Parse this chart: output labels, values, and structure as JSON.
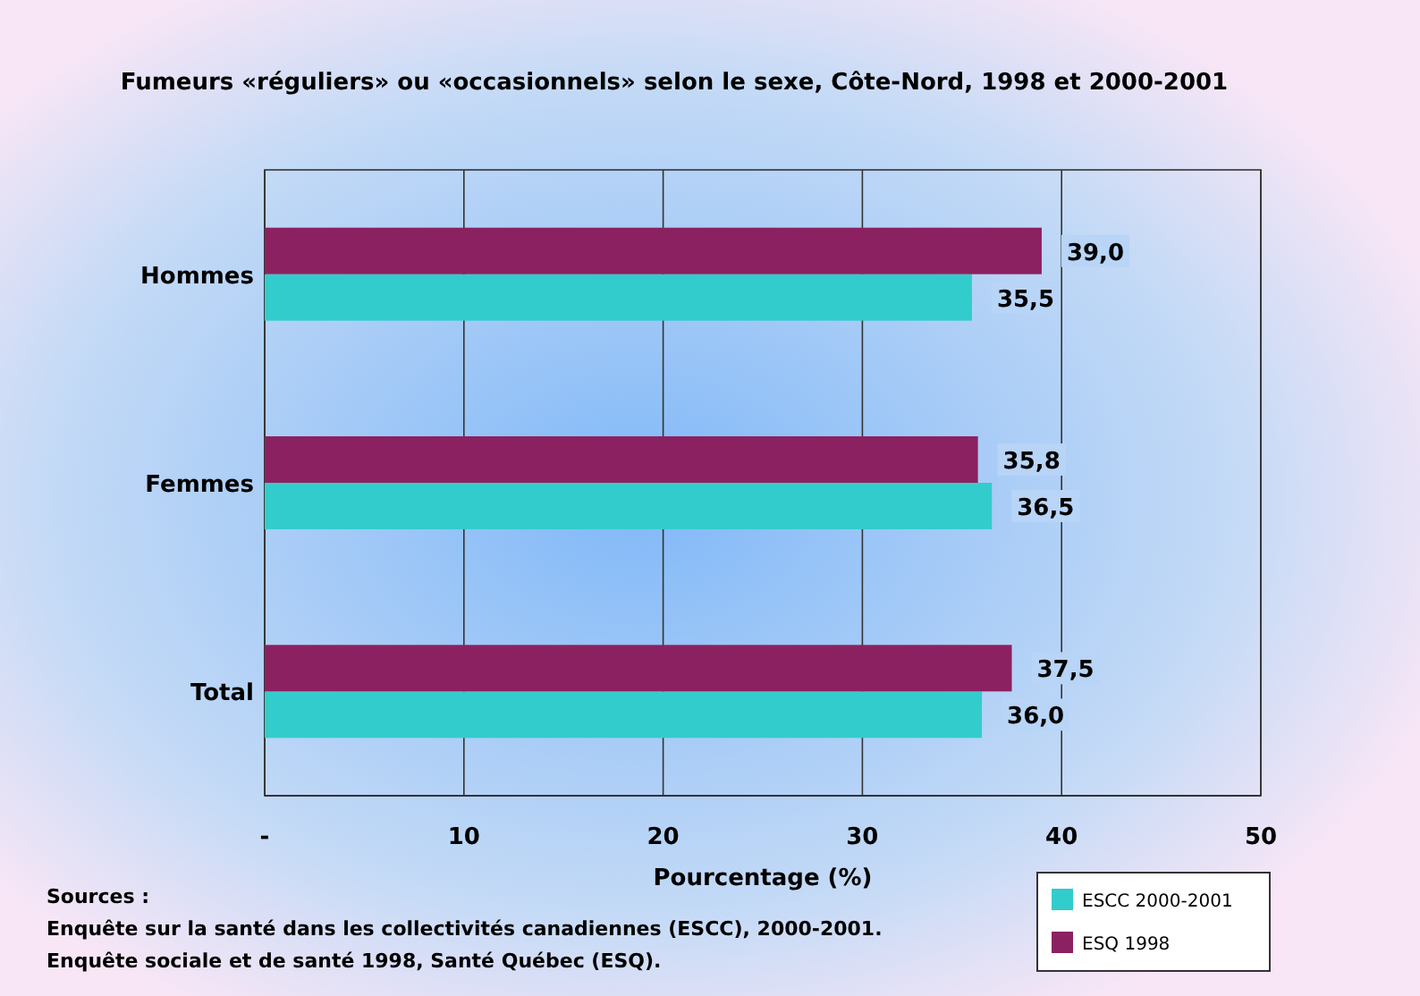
{
  "chart_data": {
    "type": "bar",
    "orientation": "horizontal",
    "title": "Fumeurs «réguliers» ou «occasionnels» selon le sexe, Côte-Nord, 1998 et 2000-2001",
    "xlabel": "Pourcentage (%)",
    "categories": [
      "Hommes",
      "Femmes",
      "Total"
    ],
    "series": [
      {
        "name": "ESCC 2000-2001",
        "color": "#33cccc",
        "values": [
          35.5,
          36.5,
          36.0
        ],
        "value_labels": [
          "35,5",
          "36,5",
          "36,0"
        ]
      },
      {
        "name": "ESQ 1998",
        "color": "#8b2160",
        "values": [
          39.0,
          35.8,
          37.5
        ],
        "value_labels": [
          "39,0",
          "35,8",
          "37,5"
        ]
      }
    ],
    "xlim": [
      0,
      50
    ],
    "xticks": [
      {
        "value": 0,
        "label": "-"
      },
      10,
      20,
      30,
      40,
      50
    ],
    "grid": "x",
    "legend": "bottom right",
    "annotations": [
      "Sources :",
      "Enquête sur la santé dans les collectivités canadiennes (ESCC), 2000-2001.",
      "Enquête sociale et de santé 1998, Santé Québec (ESQ)."
    ]
  }
}
